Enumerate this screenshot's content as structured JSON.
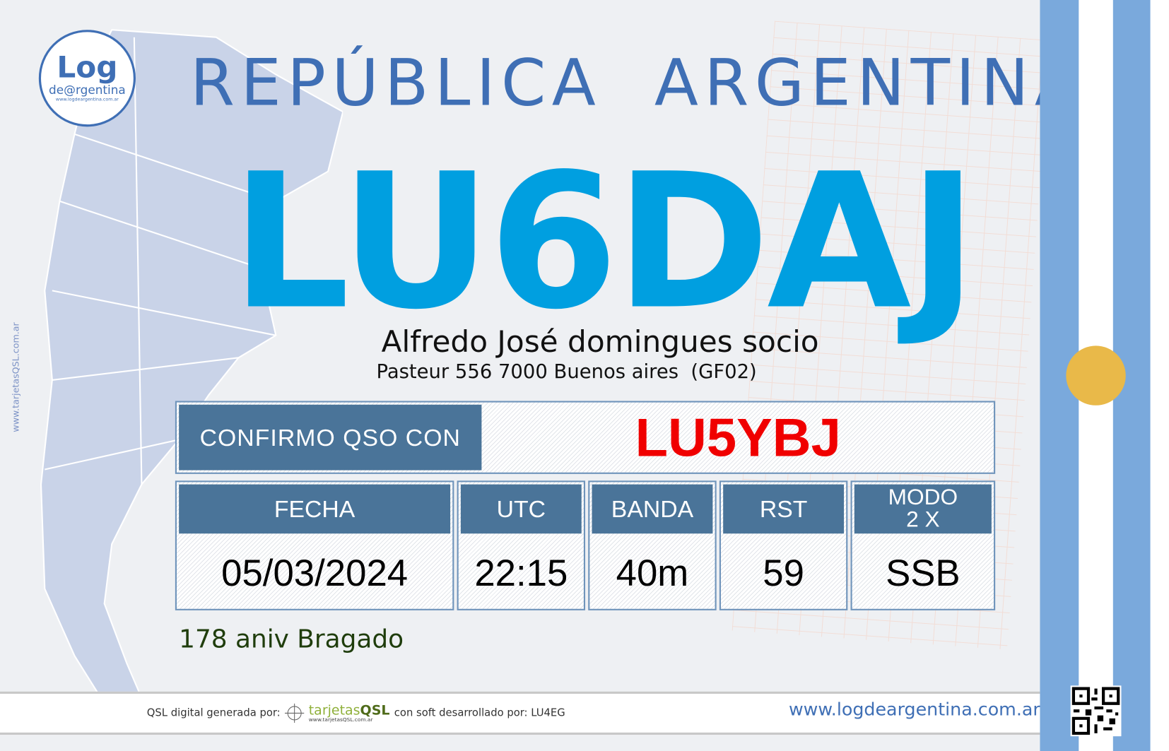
{
  "logo": {
    "text": "Log",
    "sub": "de@rgentina",
    "url": "www.logdeargentina.com.ar"
  },
  "header": {
    "country": "REPÚBLICA  ARGENTINA",
    "callsign": "LU6DAJ",
    "name": "Alfredo José domingues socio",
    "address": "Pasteur 556 7000 Buenos aires  (GF02)"
  },
  "confirm": {
    "label": "CONFIRMO QSO CON",
    "callsign": "LU5YBJ"
  },
  "qso": [
    {
      "label": "FECHA",
      "value": "05/03/2024"
    },
    {
      "label": "UTC",
      "value": "22:15"
    },
    {
      "label": "BANDA",
      "value": "40m"
    },
    {
      "label": "RST",
      "value": "59"
    },
    {
      "label": "MODO",
      "label2": "2 X",
      "value": "SSB"
    }
  ],
  "event": "178 aniv Bragado",
  "footer": {
    "generated": "QSL digital generada por:",
    "brand_a": "tarjetas",
    "brand_b": "QSL",
    "brand_url": "www.tarjetasQSL.com.ar",
    "soft": "con soft desarrollado por: LU4EG",
    "site": "www.logdeargentina.com.ar"
  },
  "side_text": "www.tarjetasQSL.com.ar",
  "colors": {
    "title": "#3f6fb5",
    "callsign": "#009fe0",
    "header_cell": "#4a7499",
    "qso_call": "#f00000",
    "flag_blue": "#7aa9dc",
    "sun": "#e9b949"
  }
}
